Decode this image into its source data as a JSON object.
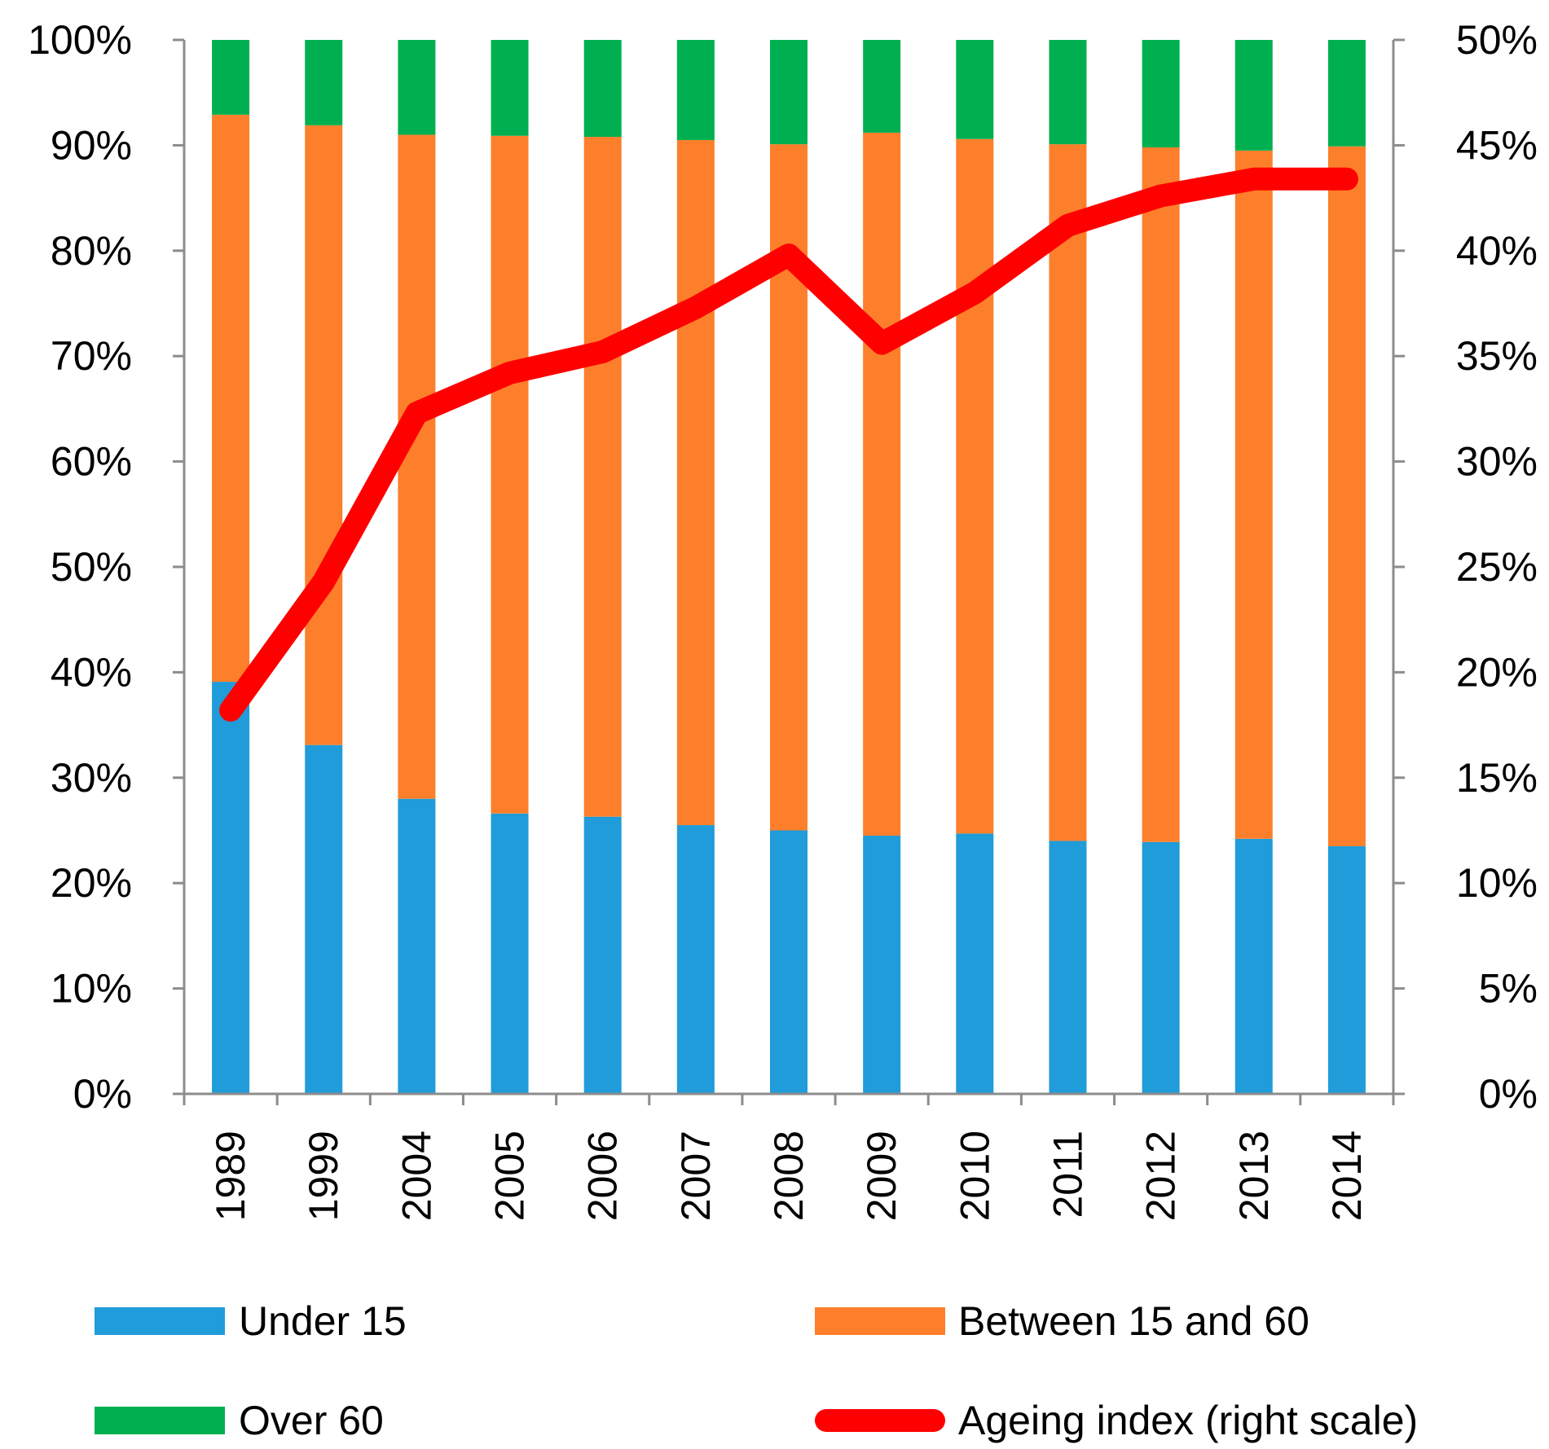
{
  "chart_data": {
    "type": "bar",
    "stacked": true,
    "categories": [
      "1989",
      "1999",
      "2004",
      "2005",
      "2006",
      "2007",
      "2008",
      "2009",
      "2010",
      "2011",
      "2012",
      "2013",
      "2014"
    ],
    "series": [
      {
        "name": "Under 15",
        "kind": "bar",
        "axis": "left",
        "color": "#1F9CD9",
        "values": [
          39.1,
          33.1,
          28.0,
          26.6,
          26.3,
          25.5,
          25.0,
          24.5,
          24.7,
          24.0,
          23.9,
          24.2,
          23.5
        ]
      },
      {
        "name": "Between 15 and 60",
        "kind": "bar",
        "axis": "left",
        "color": "#FD7F2B",
        "values": [
          53.8,
          58.8,
          63.0,
          64.3,
          64.5,
          65.0,
          65.1,
          66.7,
          65.9,
          66.1,
          65.9,
          65.3,
          66.4
        ]
      },
      {
        "name": "Over 60",
        "kind": "bar",
        "axis": "left",
        "color": "#00B050",
        "values": [
          7.1,
          8.1,
          9.0,
          9.1,
          9.2,
          9.5,
          9.9,
          8.8,
          9.4,
          9.9,
          10.2,
          10.5,
          10.1
        ]
      },
      {
        "name": "Ageing index (right scale)",
        "kind": "line",
        "axis": "right",
        "color": "#FF0000",
        "values": [
          18.2,
          24.3,
          32.3,
          34.2,
          35.2,
          37.3,
          39.8,
          35.6,
          38.0,
          41.2,
          42.6,
          43.4,
          43.4
        ]
      }
    ],
    "y_left": {
      "min": 0,
      "max": 100,
      "step": 10,
      "ticks": [
        "0%",
        "10%",
        "20%",
        "30%",
        "40%",
        "50%",
        "60%",
        "70%",
        "80%",
        "90%",
        "100%"
      ]
    },
    "y_right": {
      "min": 0,
      "max": 50,
      "step": 5,
      "ticks": [
        "0%",
        "5%",
        "10%",
        "15%",
        "20%",
        "25%",
        "30%",
        "35%",
        "40%",
        "45%",
        "50%"
      ]
    },
    "legend": {
      "position": "bottom",
      "items": [
        "Under 15",
        "Between 15 and 60",
        "Over 60",
        "Ageing index (right scale)"
      ]
    },
    "title": "",
    "xlabel": "",
    "ylabel": "",
    "grid": false
  }
}
